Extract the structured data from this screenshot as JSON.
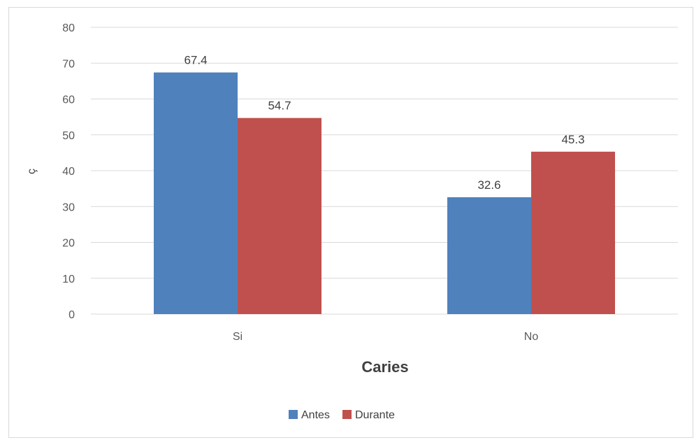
{
  "chart_data": {
    "type": "bar",
    "categories": [
      "Si",
      "No"
    ],
    "series": [
      {
        "name": "Antes",
        "values": [
          67.4,
          32.6
        ],
        "color": "#4F81BD"
      },
      {
        "name": "Durante",
        "values": [
          54.7,
          45.3
        ],
        "color": "#C0504D"
      }
    ],
    "xlabel": "Caries",
    "ylabel": "ç",
    "ylim": [
      0,
      80
    ],
    "yticks": [
      "0",
      "10",
      "20",
      "30",
      "40",
      "50",
      "60",
      "70",
      "80"
    ],
    "data_labels": [
      [
        "67.4",
        "32.6"
      ],
      [
        "54.7",
        "45.3"
      ]
    ],
    "grid": true,
    "legend": "bottom"
  }
}
